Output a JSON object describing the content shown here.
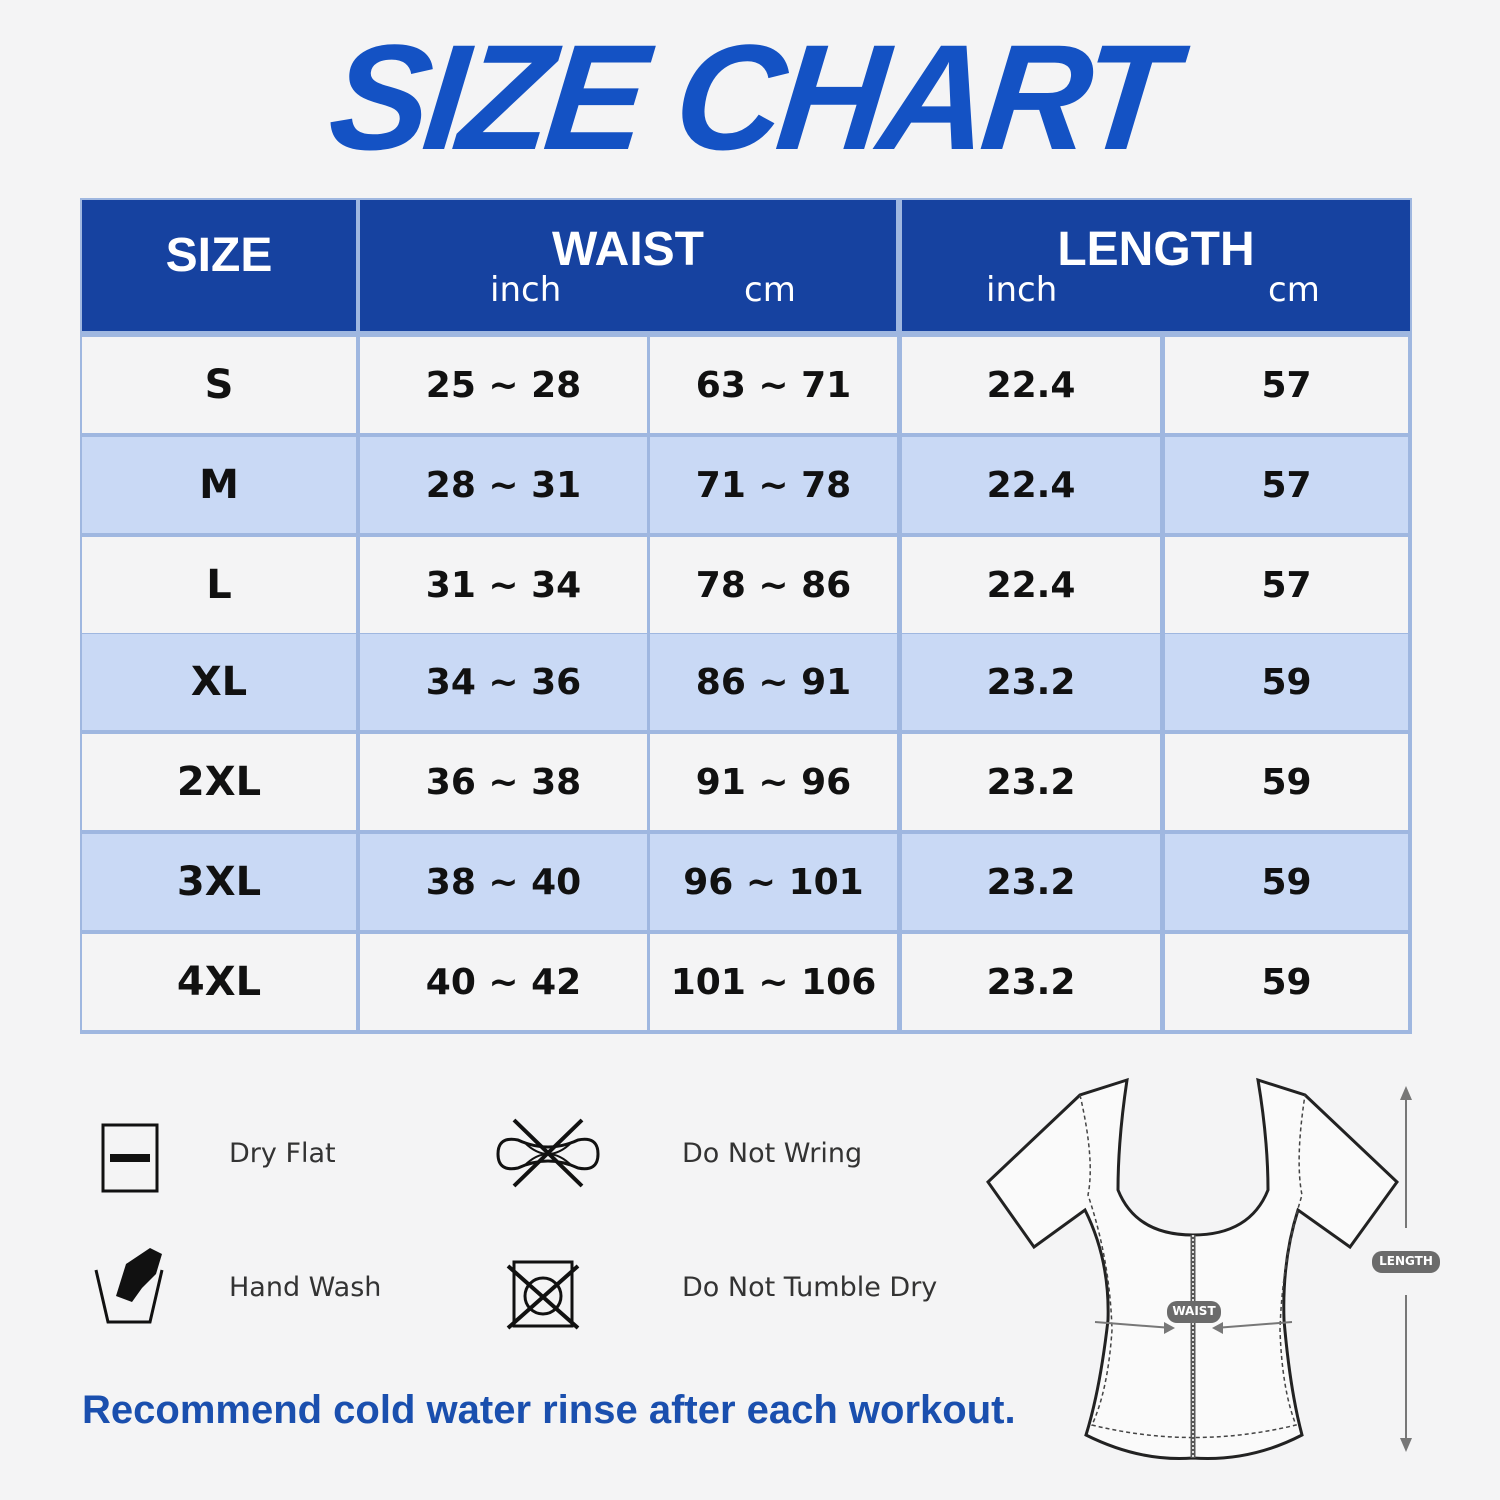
{
  "title": "SIZE CHART",
  "colors": {
    "accent": "#1452c4",
    "header_bg": "#1642a0",
    "row_alt": "#c9d9f5",
    "row": "#f4f4f5"
  },
  "table": {
    "headers": {
      "size": "SIZE",
      "waist": {
        "label": "WAIST",
        "inch": "inch",
        "cm": "cm"
      },
      "length": {
        "label": "LENGTH",
        "inch": "inch",
        "cm": "cm"
      }
    },
    "rows": [
      [
        "S",
        "25 ~ 28",
        "63 ~ 71",
        "22.4",
        "57"
      ],
      [
        "M",
        "28 ~ 31",
        "71 ~ 78",
        "22.4",
        "57"
      ],
      [
        "L",
        "31 ~ 34",
        "78 ~ 86",
        "22.4",
        "57"
      ],
      [
        "XL",
        "34 ~ 36",
        "86 ~ 91",
        "23.2",
        "59"
      ],
      [
        "2XL",
        "36 ~ 38",
        "91 ~ 96",
        "23.2",
        "59"
      ],
      [
        "3XL",
        "38 ~ 40",
        "96 ~ 101",
        "23.2",
        "59"
      ],
      [
        "4XL",
        "40 ~ 42",
        "101 ~ 106",
        "23.2",
        "59"
      ]
    ]
  },
  "care": [
    {
      "icon": "dry-flat-icon",
      "label": "Dry Flat"
    },
    {
      "icon": "do-not-wring-icon",
      "label": "Do Not Wring"
    },
    {
      "icon": "hand-wash-icon",
      "label": "Hand Wash"
    },
    {
      "icon": "do-not-tumble-dry-icon",
      "label": "Do Not Tumble Dry"
    }
  ],
  "note": "Recommend cold water rinse after each workout.",
  "diagram": {
    "waist_label": "WAIST",
    "length_label": "LENGTH"
  }
}
